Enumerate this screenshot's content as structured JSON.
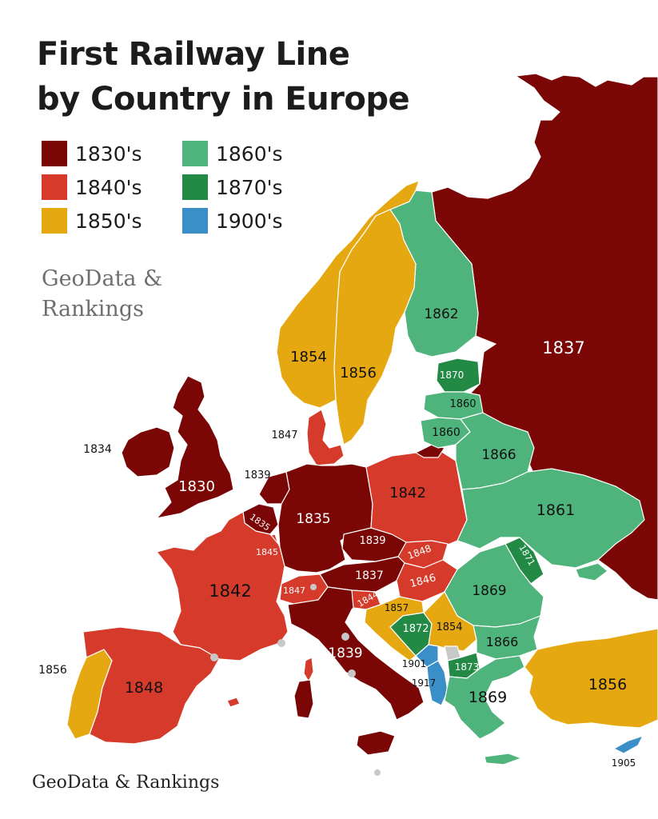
{
  "title": {
    "line1": "First Railway Line",
    "line2": "by Country in Europe"
  },
  "legend": [
    {
      "label": "1830's",
      "color": "#7a0606"
    },
    {
      "label": "1840's",
      "color": "#d63a2b"
    },
    {
      "label": "1850's",
      "color": "#e6a811"
    },
    {
      "label": "1860's",
      "color": "#4eb47b"
    },
    {
      "label": "1870's",
      "color": "#228a45"
    },
    {
      "label": "1900's",
      "color": "#3a8fc8"
    }
  ],
  "branding": {
    "mid_line1": "GeoData &",
    "mid_line2": "Rankings",
    "bottom": "GeoData & Rankings"
  },
  "map_data": {
    "regions": [
      {
        "country": "Russia",
        "year": "1837",
        "decade": "1830's"
      },
      {
        "country": "Finland",
        "year": "1862",
        "decade": "1860's"
      },
      {
        "country": "Norway",
        "year": "1854",
        "decade": "1850's"
      },
      {
        "country": "Sweden",
        "year": "1856",
        "decade": "1850's"
      },
      {
        "country": "United Kingdom",
        "year": "1830",
        "decade": "1830's"
      },
      {
        "country": "Ireland",
        "year": "1834",
        "decade": "1830's"
      },
      {
        "country": "Denmark",
        "year": "1847",
        "decade": "1840's"
      },
      {
        "country": "Netherlands",
        "year": "1839",
        "decade": "1830's"
      },
      {
        "country": "Belgium",
        "year": "1835",
        "decade": "1830's"
      },
      {
        "country": "Luxembourg",
        "year": "1845",
        "decade": "1840's"
      },
      {
        "country": "Germany",
        "year": "1835",
        "decade": "1830's"
      },
      {
        "country": "Poland",
        "year": "1842",
        "decade": "1840's"
      },
      {
        "country": "Estonia",
        "year": "1870",
        "decade": "1870's"
      },
      {
        "country": "Latvia",
        "year": "1860",
        "decade": "1860's"
      },
      {
        "country": "Lithuania",
        "year": "1860",
        "decade": "1860's"
      },
      {
        "country": "Belarus",
        "year": "1866",
        "decade": "1860's"
      },
      {
        "country": "Ukraine",
        "year": "1861",
        "decade": "1860's"
      },
      {
        "country": "Czechia",
        "year": "1839",
        "decade": "1830's"
      },
      {
        "country": "Slovakia",
        "year": "1848",
        "decade": "1840's"
      },
      {
        "country": "Austria",
        "year": "1837",
        "decade": "1830's"
      },
      {
        "country": "Hungary",
        "year": "1846",
        "decade": "1840's"
      },
      {
        "country": "Moldova",
        "year": "1871",
        "decade": "1870's"
      },
      {
        "country": "Romania",
        "year": "1869",
        "decade": "1860's"
      },
      {
        "country": "France",
        "year": "1842",
        "decade": "1840's"
      },
      {
        "country": "Switzerland",
        "year": "1847",
        "decade": "1840's"
      },
      {
        "country": "Slovenia",
        "year": "1844",
        "decade": "1840's"
      },
      {
        "country": "Croatia",
        "year": "1857",
        "decade": "1850's"
      },
      {
        "country": "Bosnia and Herzegovina",
        "year": "1872",
        "decade": "1870's"
      },
      {
        "country": "Serbia",
        "year": "1854",
        "decade": "1850's"
      },
      {
        "country": "Bulgaria",
        "year": "1866",
        "decade": "1860's"
      },
      {
        "country": "Italy",
        "year": "1839",
        "decade": "1830's"
      },
      {
        "country": "Montenegro",
        "year": "1901",
        "decade": "1900's"
      },
      {
        "country": "Albania",
        "year": "1917",
        "decade": "1900's"
      },
      {
        "country": "North Macedonia",
        "year": "1873",
        "decade": "1870's"
      },
      {
        "country": "Greece",
        "year": "1869",
        "decade": "1860's"
      },
      {
        "country": "Portugal",
        "year": "1856",
        "decade": "1850's"
      },
      {
        "country": "Spain",
        "year": "1848",
        "decade": "1840's"
      },
      {
        "country": "Turkey",
        "year": "1856",
        "decade": "1850's"
      },
      {
        "country": "Cyprus",
        "year": "1905",
        "decade": "1900's"
      }
    ]
  }
}
